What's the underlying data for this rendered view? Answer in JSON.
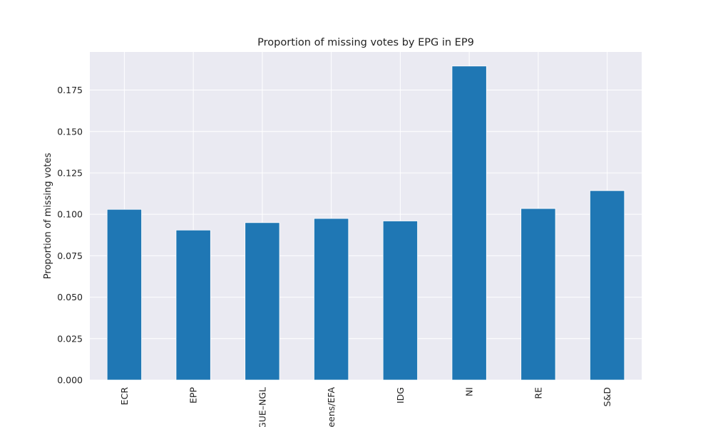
{
  "chart_data": {
    "type": "bar",
    "title": "Proportion of missing votes by EPG in EP9",
    "xlabel": "",
    "ylabel": "Proportion of missing votes",
    "categories": [
      "ECR",
      "EPP",
      "GUE–NGL",
      "Greens/EFA",
      "IDG",
      "NI",
      "RE",
      "S&D"
    ],
    "values": [
      0.103,
      0.0905,
      0.095,
      0.0975,
      0.096,
      0.1895,
      0.1035,
      0.1143
    ],
    "ylim": [
      0,
      0.198
    ],
    "yticks": [
      "0.000",
      "0.025",
      "0.050",
      "0.075",
      "0.100",
      "0.125",
      "0.150",
      "0.175"
    ],
    "grid": true,
    "legend": "none",
    "colors": {
      "bar": "#1f77b4",
      "background": "#eaeaf2",
      "grid": "#ffffff"
    }
  }
}
